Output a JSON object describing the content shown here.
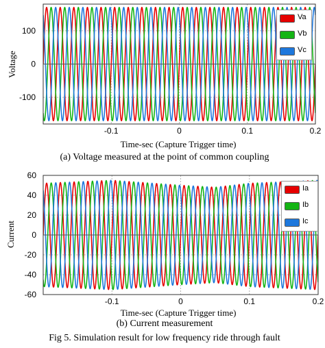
{
  "figure_caption": "Fig 5. Simulation result for low frequency ride through fault",
  "colors": {
    "phase_a": "#e60000",
    "phase_b": "#14b414",
    "phase_c": "#1e78dc",
    "grid": "#b4b4b4",
    "zero_line": "#555555"
  },
  "chart_data": [
    {
      "type": "line",
      "caption": "(a) Voltage measured at the point of common coupling",
      "xlabel": "Time-sec (Capture Trigger time)",
      "ylabel": "Voltage",
      "xlim": [
        -0.2,
        0.2
      ],
      "ylim": [
        -180,
        180
      ],
      "x_ticks": [
        -0.1,
        0,
        0.1,
        0.2
      ],
      "x_tick_labels": [
        "-0.1",
        "0",
        "0.1",
        "0.2"
      ],
      "y_ticks": [
        100,
        0,
        -100
      ],
      "y_tick_labels": [
        "100",
        "0",
        "-100"
      ],
      "grid": true,
      "legend_position": "top-right",
      "frequency_hz": 50,
      "series": [
        {
          "name": "Va",
          "color": "#e60000",
          "amplitude": 170,
          "phase_deg": 0
        },
        {
          "name": "Vb",
          "color": "#14b414",
          "amplitude": 170,
          "phase_deg": -120
        },
        {
          "name": "Vc",
          "color": "#1e78dc",
          "amplitude": 170,
          "phase_deg": 120
        }
      ]
    },
    {
      "type": "line",
      "caption": "(b) Current measurement",
      "xlabel": "Time-sec (Capture Trigger time)",
      "ylabel": "Current",
      "xlim": [
        -0.2,
        0.2
      ],
      "ylim": [
        -60,
        60
      ],
      "x_ticks": [
        -0.1,
        0,
        0.1,
        0.2
      ],
      "x_tick_labels": [
        "-0.1",
        "0",
        "0.1",
        "0.2"
      ],
      "y_ticks": [
        60,
        40,
        20,
        0,
        -20,
        -40,
        -60
      ],
      "y_tick_labels": [
        "60",
        "40",
        "20",
        "0",
        "-20",
        "-40",
        "-60"
      ],
      "grid": true,
      "legend_position": "top-right",
      "frequency_hz": 50,
      "amplitude_profile": {
        "x": [
          -0.2,
          -0.1,
          0.0,
          0.05,
          0.1,
          0.2
        ],
        "y": [
          52,
          55,
          50,
          48,
          52,
          55
        ]
      },
      "series": [
        {
          "name": "Ia",
          "color": "#e60000",
          "phase_deg": 0
        },
        {
          "name": "Ib",
          "color": "#14b414",
          "phase_deg": -120
        },
        {
          "name": "Ic",
          "color": "#1e78dc",
          "phase_deg": 120
        }
      ]
    }
  ]
}
